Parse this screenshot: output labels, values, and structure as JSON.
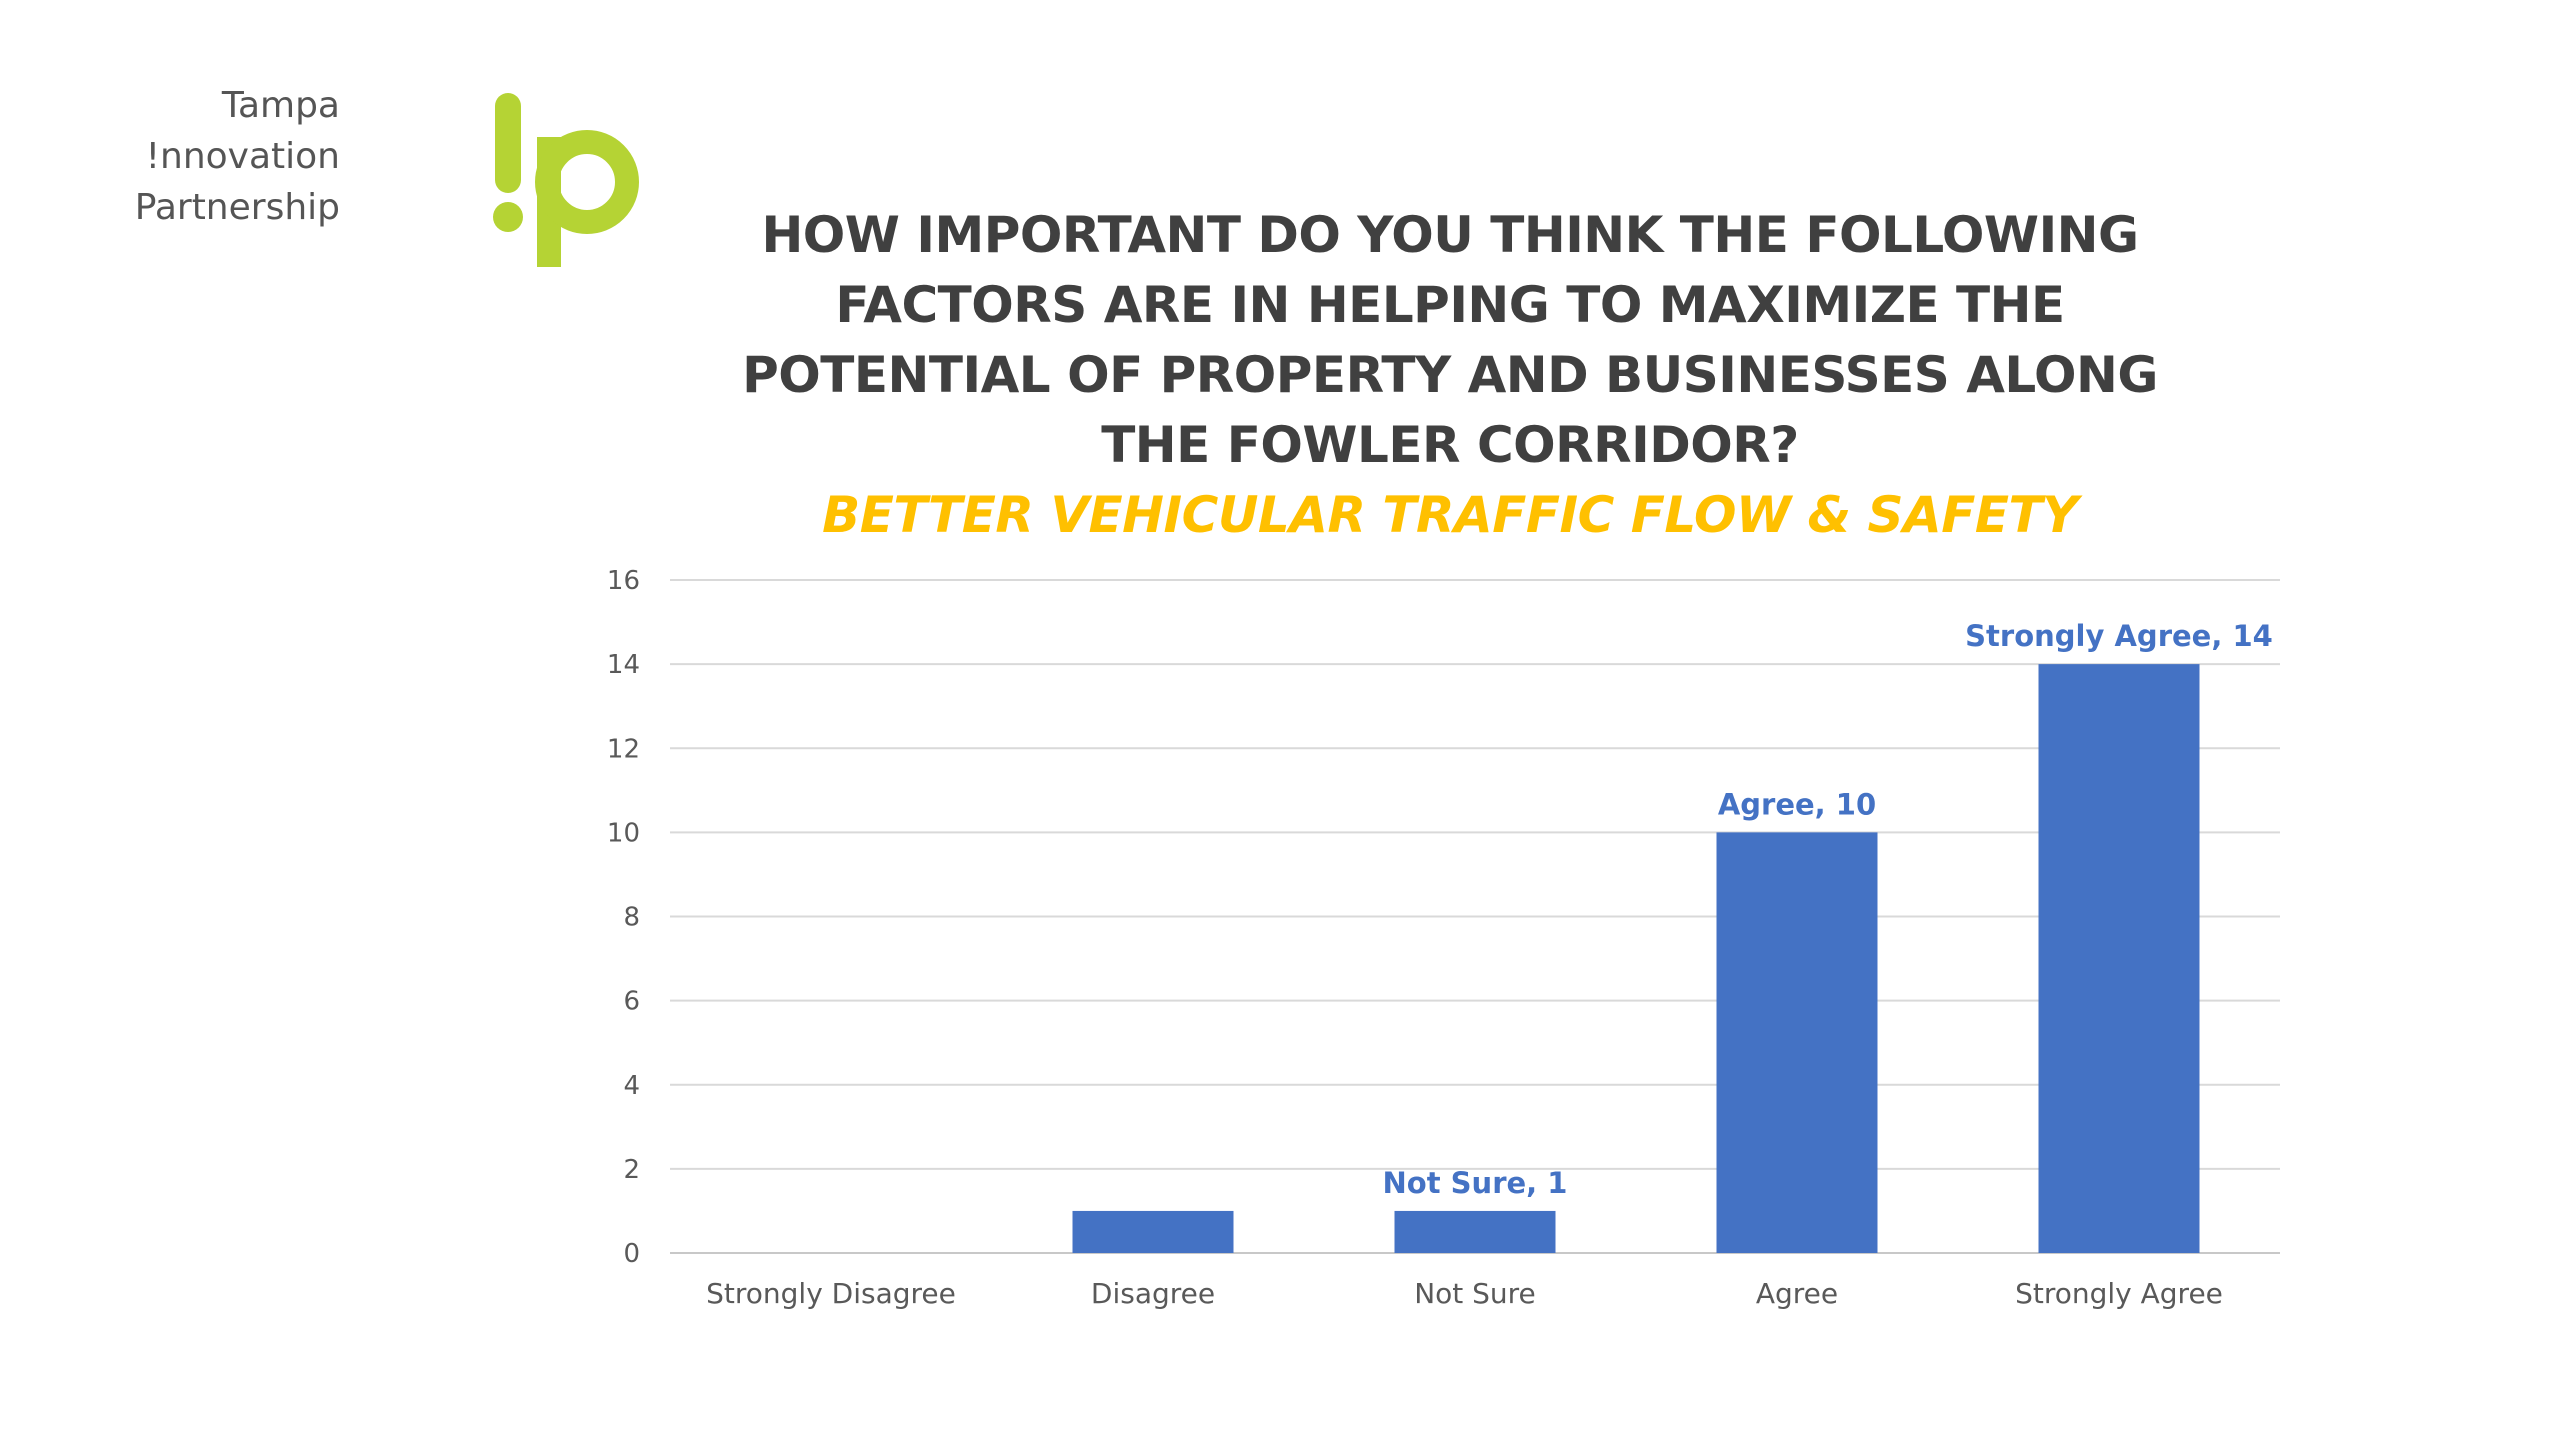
{
  "logo": {
    "lines": [
      "Tampa",
      "!nnovation",
      "Partnership"
    ],
    "mark": "!p",
    "color": "#B5D334"
  },
  "title": "HOW IMPORTANT DO YOU THINK THE FOLLOWING FACTORS ARE IN HELPING TO MAXIMIZE THE POTENTIAL OF PROPERTY AND BUSINESSES ALONG THE FOWLER CORRIDOR?",
  "subtitle": "BETTER VEHICULAR TRAFFIC FLOW & SAFETY",
  "chart_data": {
    "type": "bar",
    "categories": [
      "Strongly Disagree",
      "Disagree",
      "Not Sure",
      "Agree",
      "Strongly Agree"
    ],
    "values": [
      0,
      1,
      1,
      10,
      14
    ],
    "data_labels": [
      "",
      "",
      "Not Sure, 1",
      "Agree, 10",
      "Strongly Agree, 14"
    ],
    "ylim": [
      0,
      16
    ],
    "yticks": [
      0,
      2,
      4,
      6,
      8,
      10,
      12,
      14,
      16
    ],
    "grid": true,
    "bar_color": "#4472C4",
    "label_color": "#4472C4",
    "xlabel": "",
    "ylabel": ""
  }
}
